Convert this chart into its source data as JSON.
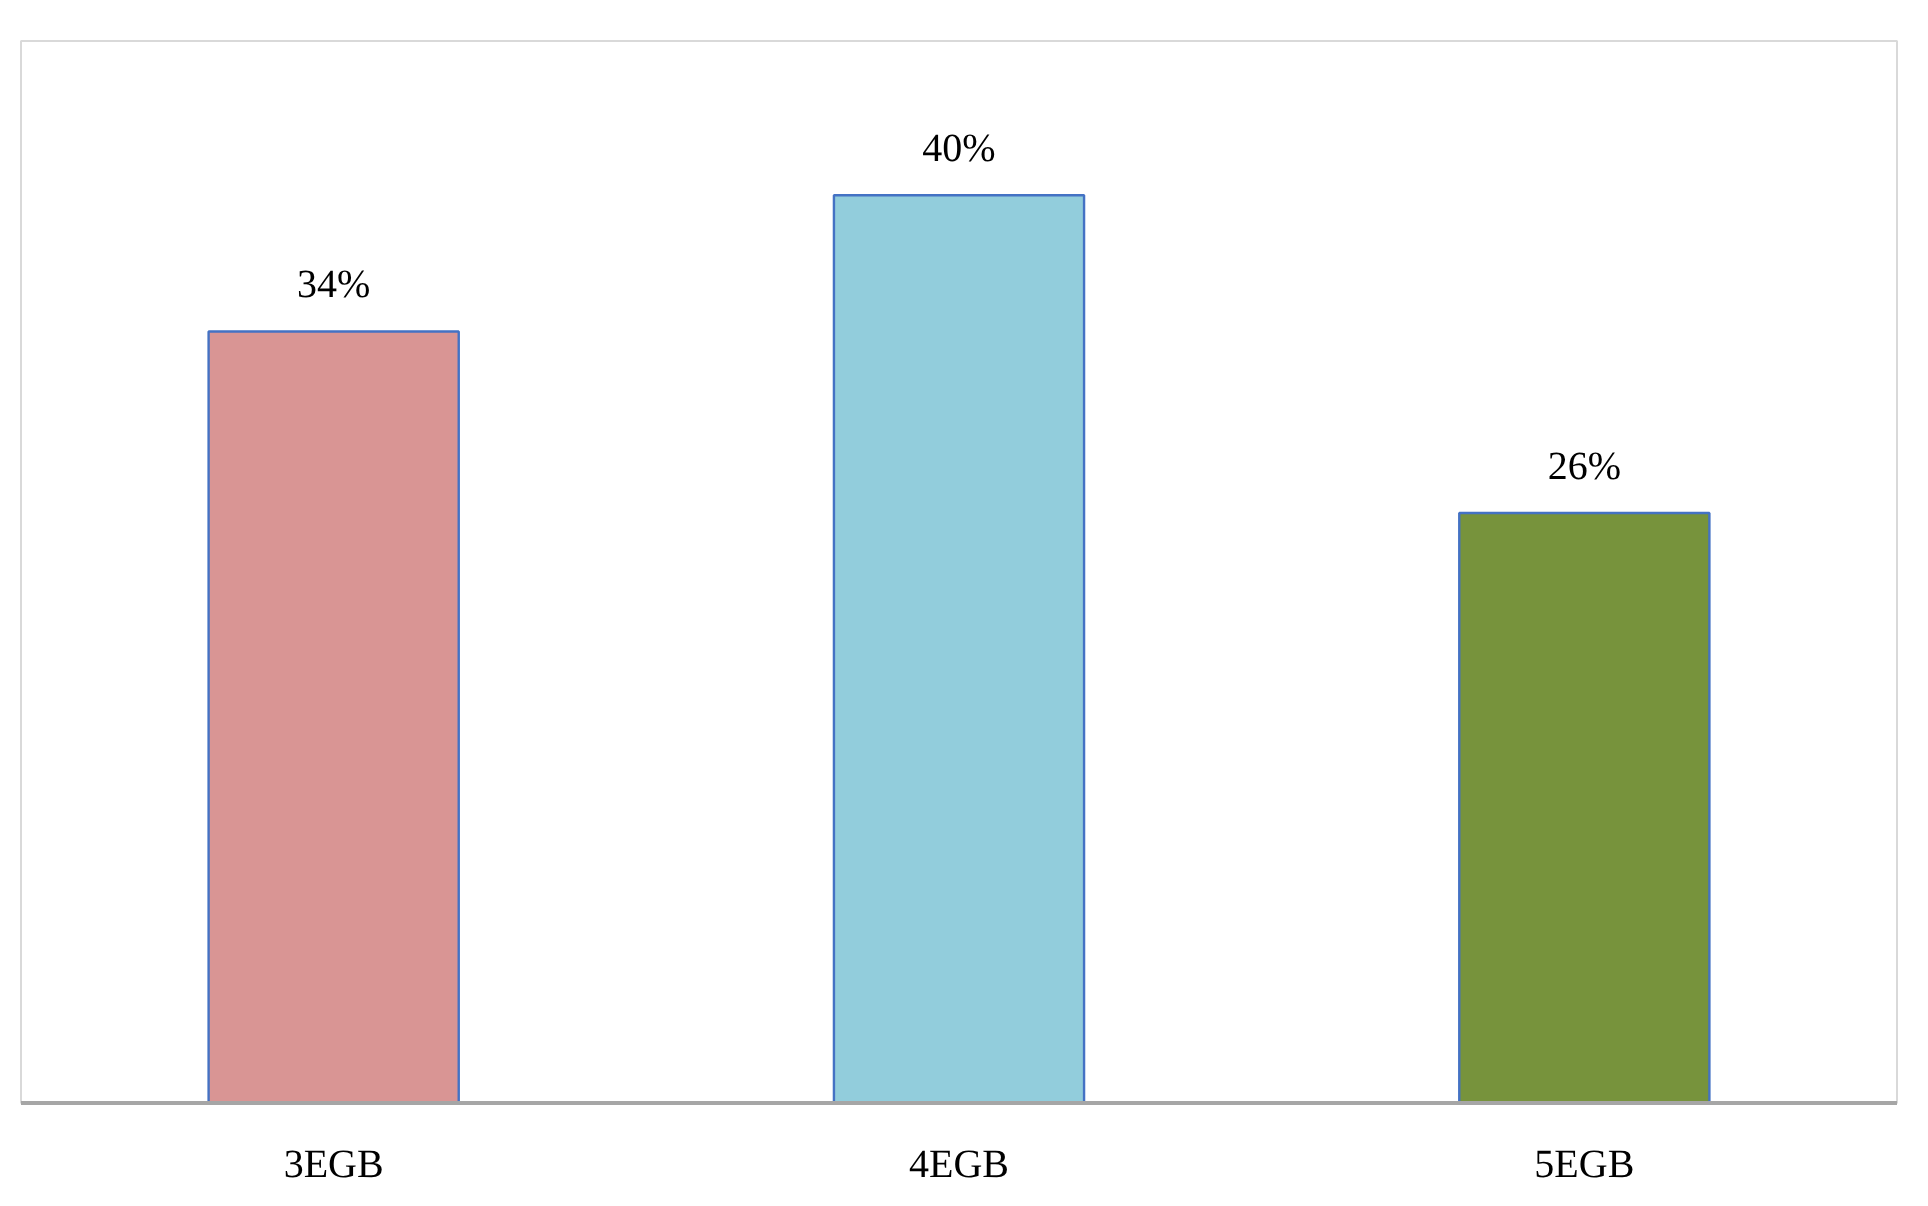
{
  "chart_data": {
    "type": "bar",
    "categories": [
      "3EGB",
      "4EGB",
      "5EGB"
    ],
    "values": [
      34,
      40,
      26
    ],
    "colors": [
      "#d99594",
      "#92cddc",
      "#77933c"
    ],
    "value_labels": [
      "34%",
      "40%",
      "26%"
    ],
    "grid": false
  }
}
